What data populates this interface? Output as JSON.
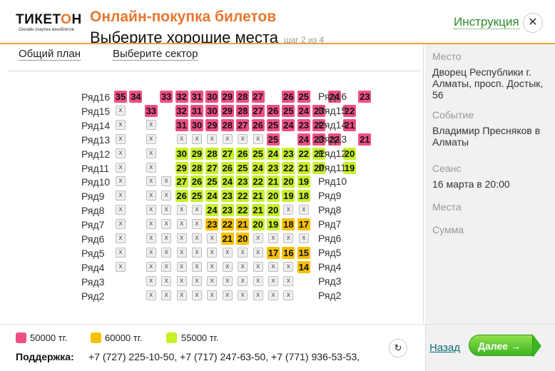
{
  "header": {
    "logo_main_a": "ТИКЕТ",
    "logo_main_b": "О",
    "logo_main_c": "Н",
    "logo_tagline": "Онлайн покупка киноблетов",
    "title": "Онлайн-покупка билетов",
    "subtitle": "Выберите хорошие места",
    "step": "шаг 2 из 4",
    "instruction": "Инструкция",
    "close_glyph": "✕"
  },
  "tabs": [
    "Общий план",
    "Выберите сектор"
  ],
  "seat_map": {
    "row_prefix": "Ряд",
    "rows": [
      {
        "row": 16,
        "seats": [
          "p35",
          "p34",
          "_",
          "p33",
          "p32",
          "p31",
          "p30",
          "p29",
          "p28",
          "p27",
          "_",
          "p26",
          "p25",
          "_",
          "p24",
          "_",
          "p23"
        ]
      },
      {
        "row": 15,
        "seats": [
          "x",
          "_",
          "p33",
          "_",
          "p32",
          "p31",
          "p30",
          "p29",
          "p28",
          "p27",
          "p26",
          "p25",
          "p24",
          "p23",
          "_",
          "p22"
        ]
      },
      {
        "row": 14,
        "seats": [
          "x",
          "_",
          "x",
          "_",
          "p31",
          "p30",
          "p29",
          "p28",
          "p27",
          "p26",
          "p25",
          "p24",
          "p23",
          "p22",
          "_",
          "p21"
        ]
      },
      {
        "row": 13,
        "seats": [
          "x",
          "_",
          "x",
          "_",
          "x",
          "x",
          "x",
          "x",
          "x",
          "x",
          "p25",
          "_",
          "p24",
          "p23",
          "p22",
          "_",
          "p21"
        ]
      },
      {
        "row": 12,
        "seats": [
          "x",
          "_",
          "x",
          "_",
          "g30",
          "g29",
          "g28",
          "g27",
          "g26",
          "g25",
          "g24",
          "g23",
          "g22",
          "g21",
          "_",
          "g20"
        ]
      },
      {
        "row": 11,
        "seats": [
          "x",
          "_",
          "x",
          "_",
          "g29",
          "g28",
          "g27",
          "g26",
          "g25",
          "g24",
          "g23",
          "g22",
          "g21",
          "g20",
          "_",
          "g19"
        ]
      },
      {
        "row": 10,
        "seats": [
          "x",
          "_",
          "x",
          "x",
          "g27",
          "g26",
          "g25",
          "g24",
          "g23",
          "g22",
          "g21",
          "g20",
          "g19"
        ]
      },
      {
        "row": 9,
        "seats": [
          "x",
          "_",
          "x",
          "x",
          "g26",
          "g25",
          "g24",
          "g23",
          "g22",
          "g21",
          "g20",
          "g19",
          "g18"
        ]
      },
      {
        "row": 8,
        "seats": [
          "x",
          "_",
          "x",
          "x",
          "x",
          "x",
          "g24",
          "g23",
          "g22",
          "g21",
          "g20",
          "x",
          "x"
        ]
      },
      {
        "row": 7,
        "seats": [
          "x",
          "_",
          "x",
          "x",
          "x",
          "x",
          "y23",
          "y22",
          "y21",
          "g20",
          "g19",
          "y18",
          "y17"
        ]
      },
      {
        "row": 6,
        "seats": [
          "x",
          "_",
          "x",
          "x",
          "x",
          "x",
          "x",
          "y21",
          "y20",
          "x",
          "x",
          "x",
          "x"
        ]
      },
      {
        "row": 5,
        "seats": [
          "x",
          "_",
          "x",
          "x",
          "x",
          "x",
          "x",
          "x",
          "x",
          "x",
          "y17",
          "y16",
          "y15"
        ]
      },
      {
        "row": 4,
        "seats": [
          "x",
          "_",
          "x",
          "x",
          "x",
          "x",
          "x",
          "x",
          "x",
          "x",
          "x",
          "x",
          "y14"
        ]
      },
      {
        "row": 3,
        "seats": [
          "_",
          "_",
          "x",
          "x",
          "x",
          "x",
          "x",
          "x",
          "x",
          "x",
          "x",
          "x"
        ]
      },
      {
        "row": 2,
        "seats": [
          "_",
          "_",
          "x",
          "x",
          "x",
          "x",
          "x",
          "x",
          "x",
          "x",
          "x",
          "x"
        ]
      }
    ],
    "x_glyph": "x"
  },
  "side": {
    "place_label": "Место",
    "place_value": "Дворец Республики г. Алматы, просп. Достык, 56",
    "event_label": "Событие",
    "event_value": "Владимир Пресняков в Алматы",
    "session_label": "Сеанс",
    "session_value": "16 марта в 20:00",
    "seats_label": "Места",
    "sum_label": "Сумма"
  },
  "legend": [
    {
      "label": "50000 тг.",
      "color": "#ee4f87"
    },
    {
      "label": "60000 тг.",
      "color": "#f7c000"
    },
    {
      "label": "55000 тг.",
      "color": "#c6f12a"
    }
  ],
  "support": {
    "label": "Поддержка:",
    "phones": "+7 (727) 225-10-50, +7 (717) 247-63-50, +7 (771) 936-53-53,"
  },
  "footer": {
    "refresh_glyph": "↻",
    "back": "Назад",
    "next": "Далее →"
  }
}
